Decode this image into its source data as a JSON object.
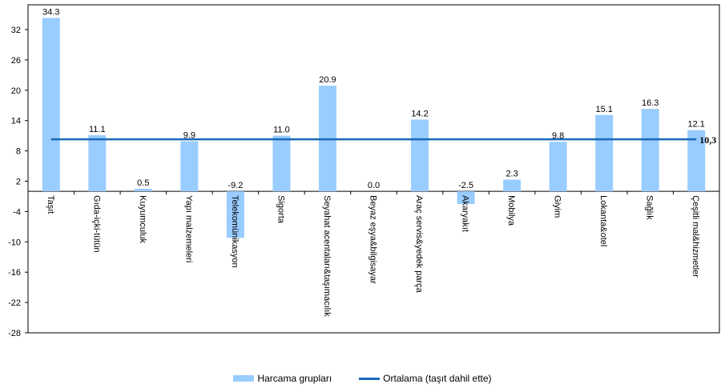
{
  "chart_data": {
    "type": "bar",
    "categories": [
      "Taşıt",
      "Gıda-içki-tütün",
      "Kuyumculuk",
      "Yapı malzemeleri",
      "Telekomünikasyon",
      "Sigorta",
      "Seyahat acentaları&taşımacılık",
      "Beyaz eşya&bilgisayar",
      "Araç servis&yedek parça",
      "Akaryakıt",
      "Mobilya",
      "Giyim",
      "Lokanta&otel",
      "Sağlık",
      "Çeşitli mal&hizmetler"
    ],
    "series": [
      {
        "name": "Harcama grupları",
        "type": "bar",
        "values": [
          34.3,
          11.1,
          0.5,
          9.9,
          -9.2,
          11.0,
          20.9,
          0.0,
          14.2,
          -2.5,
          2.3,
          9.8,
          15.1,
          16.3,
          12.1
        ]
      },
      {
        "name": "Ortalama (taşıt dahil ette)",
        "type": "line",
        "value": 10.3
      }
    ],
    "data_labels": [
      "34.3",
      "11.1",
      "0.5",
      "9.9",
      "-9.2",
      "11.0",
      "20.9",
      "0.0",
      "14.2",
      "-2.5",
      "2.3",
      "9.8",
      "15.1",
      "16.3",
      "12.1"
    ],
    "average_label": "10,3",
    "yticks": [
      "32",
      "26",
      "20",
      "14",
      "8",
      "2",
      "-4",
      "-10",
      "-16",
      "-22",
      "-28"
    ],
    "ylim": [
      -28,
      35
    ],
    "grid": false,
    "legend": "bottom",
    "colors": {
      "bar": "#99ccff",
      "line": "#1a69b8"
    }
  }
}
